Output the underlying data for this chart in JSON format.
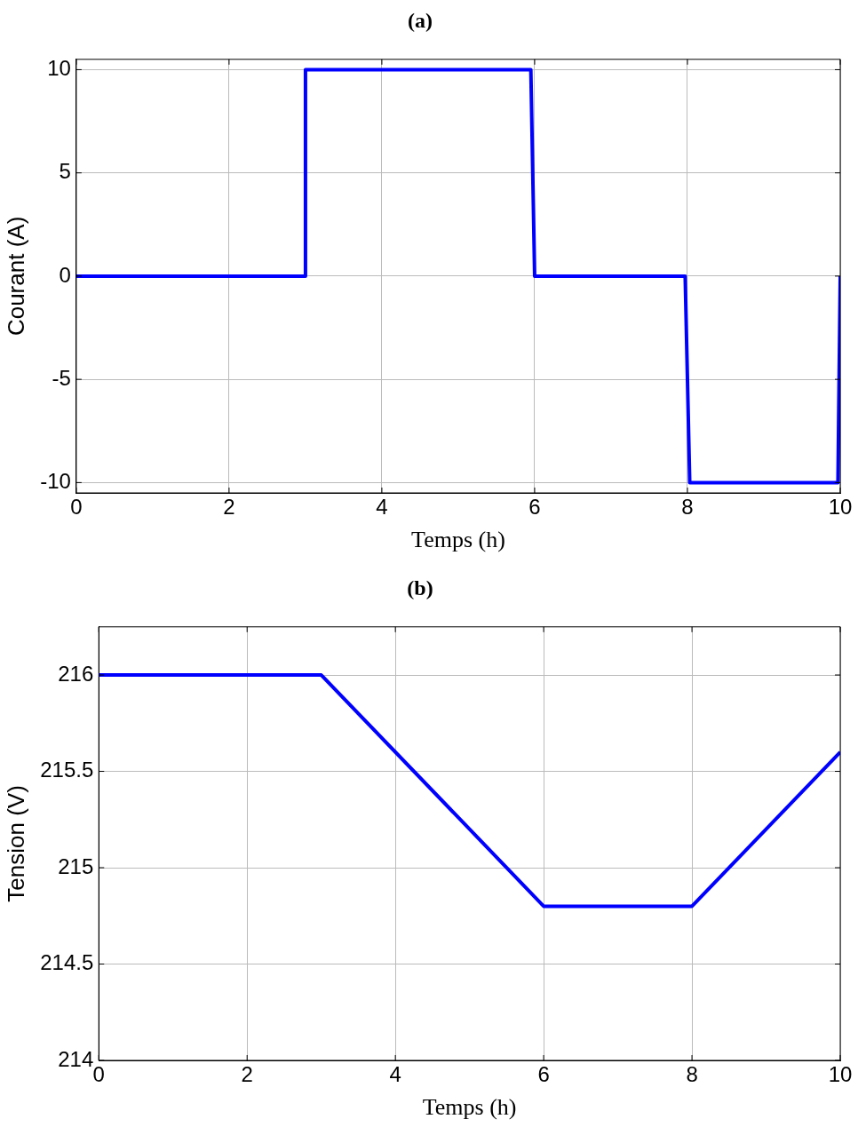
{
  "chart_data": [
    {
      "type": "line",
      "title": "(a)",
      "xlabel": "Temps (h)",
      "ylabel": "Courant (A)",
      "xlim": [
        0,
        10
      ],
      "xticks": [
        0,
        2,
        4,
        6,
        8,
        10
      ],
      "ylim": [
        -10.5,
        10.5
      ],
      "yticks": [
        -10,
        -5,
        0,
        5,
        10
      ],
      "grid": true,
      "legend": false,
      "series": [
        {
          "color": "#0000ff",
          "x": [
            0,
            3,
            3,
            5.95,
            6,
            7.97,
            8.03,
            9.97,
            10
          ],
          "values": [
            0,
            0,
            10,
            10,
            0,
            0,
            -10,
            -10,
            0
          ]
        }
      ]
    },
    {
      "type": "line",
      "title": "(b)",
      "xlabel": "Temps (h)",
      "ylabel": "Tension (V)",
      "xlim": [
        0,
        10
      ],
      "xticks": [
        0,
        2,
        4,
        6,
        8,
        10
      ],
      "ylim": [
        214,
        216.25
      ],
      "yticks": [
        214,
        214.5,
        215,
        215.5,
        216
      ],
      "grid": true,
      "legend": false,
      "series": [
        {
          "color": "#0000ff",
          "x": [
            0,
            3,
            6,
            8,
            10
          ],
          "values": [
            216,
            216,
            214.8,
            214.8,
            215.6
          ]
        }
      ]
    }
  ]
}
